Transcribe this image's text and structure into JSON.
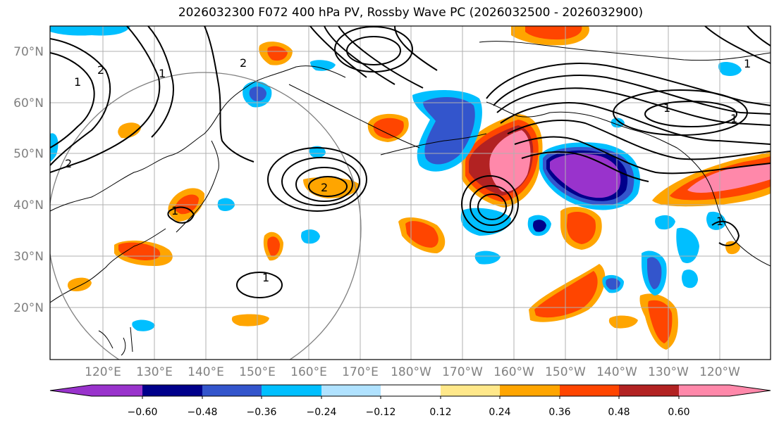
{
  "title": "2026032300 F072 400 hPa PV, Rossby Wave PC (2026032500 - 2026032900)",
  "lat_labels": [
    "70°N",
    "60°N",
    "50°N",
    "40°N",
    "30°N",
    "20°N"
  ],
  "lon_labels": [
    "120°E",
    "130°E",
    "140°E",
    "150°E",
    "160°E",
    "170°E",
    "180°W",
    "170°W",
    "160°W",
    "150°W",
    "140°W",
    "130°W",
    "120°W"
  ],
  "colorbar": {
    "ticks": [
      "−0.60",
      "−0.48",
      "−0.36",
      "−0.24",
      "−0.12",
      "0.12",
      "0.24",
      "0.36",
      "0.48",
      "0.60"
    ],
    "colors": [
      "#9933cc",
      "#00008b",
      "#3355cc",
      "#00bfff",
      "#b0e2ff",
      "#ffffff",
      "#ffe88a",
      "#ffa500",
      "#ff4500",
      "#b22222",
      "#ff88aa"
    ],
    "under_color": "#9933cc",
    "over_color": "#ff88aa"
  },
  "contour_labels": [
    "2",
    "1",
    "2",
    "1",
    "1",
    "1",
    "1",
    "2",
    "2",
    "1",
    "1",
    "1"
  ]
}
